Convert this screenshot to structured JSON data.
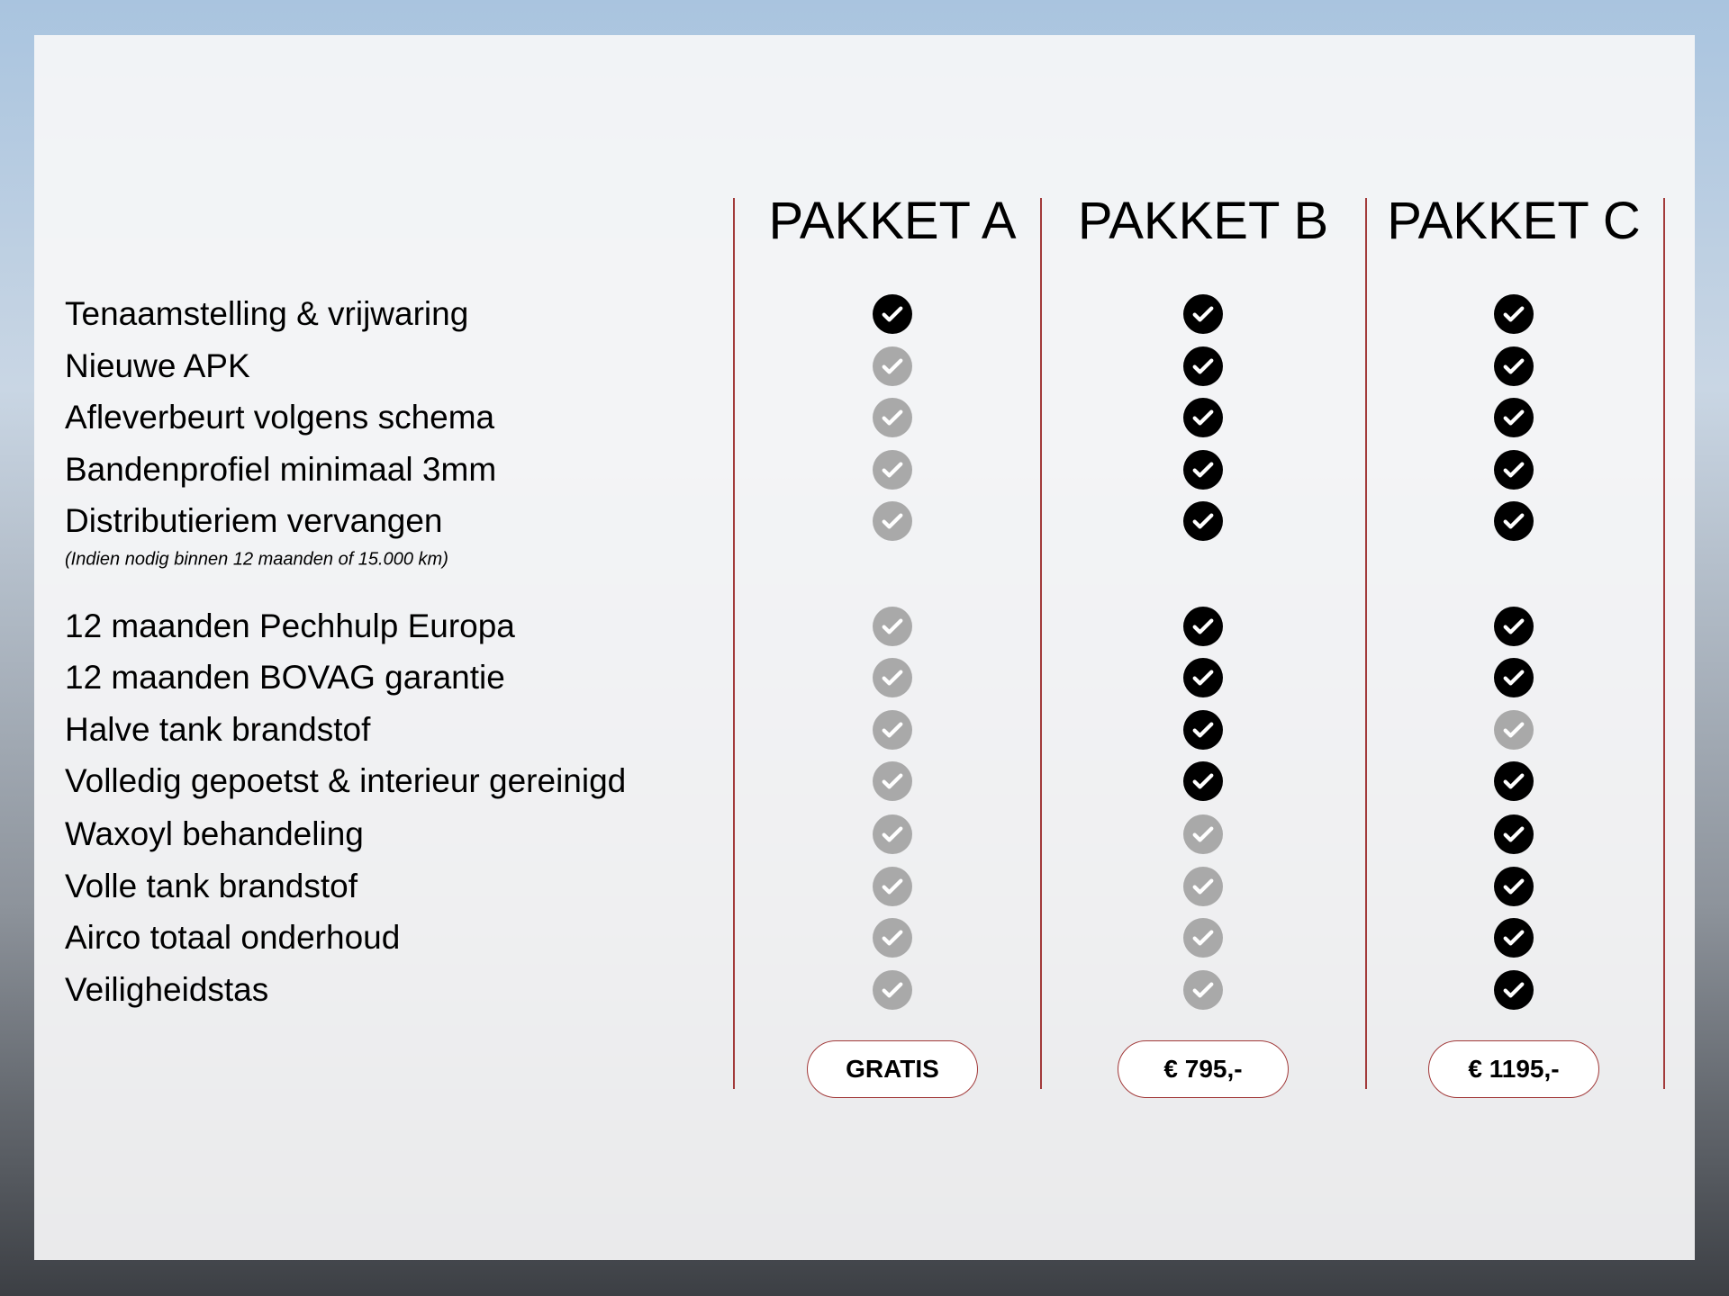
{
  "packages": [
    {
      "name": "PAKKET A",
      "price": "GRATIS"
    },
    {
      "name": "PAKKET B",
      "price": "€ 795,-"
    },
    {
      "name": "PAKKET C",
      "price": "€ 1195,-"
    }
  ],
  "features": [
    {
      "label": "Tenaamstelling & vrijwaring",
      "included": [
        true,
        true,
        true
      ]
    },
    {
      "label": "Nieuwe APK",
      "included": [
        false,
        true,
        true
      ]
    },
    {
      "label": "Afleverbeurt volgens schema",
      "included": [
        false,
        true,
        true
      ]
    },
    {
      "label": "Bandenprofiel minimaal 3mm",
      "included": [
        false,
        true,
        true
      ]
    },
    {
      "label": "Distributieriem vervangen",
      "note": "(Indien nodig binnen 12 maanden of 15.000 km)",
      "included": [
        false,
        true,
        true
      ]
    },
    {
      "label": "12 maanden Pechhulp Europa",
      "included": [
        false,
        true,
        true
      ]
    },
    {
      "label": "12 maanden BOVAG garantie",
      "included": [
        false,
        true,
        true
      ]
    },
    {
      "label": "Halve tank brandstof",
      "included": [
        false,
        true,
        false
      ]
    },
    {
      "label": "Volledig gepoetst & interieur gereinigd",
      "included": [
        false,
        true,
        true
      ]
    },
    {
      "label": "Waxoyl behandeling",
      "included": [
        false,
        false,
        true
      ]
    },
    {
      "label": "Volle tank brandstof",
      "included": [
        false,
        false,
        true
      ]
    },
    {
      "label": "Airco totaal onderhoud",
      "included": [
        false,
        false,
        true
      ]
    },
    {
      "label": "Veiligheidstas",
      "included": [
        false,
        false,
        true
      ]
    }
  ],
  "colors": {
    "included": "#000000",
    "not_included": "#a9a9a9",
    "divider": "#a23a3a"
  },
  "icon": "check-circle-icon"
}
